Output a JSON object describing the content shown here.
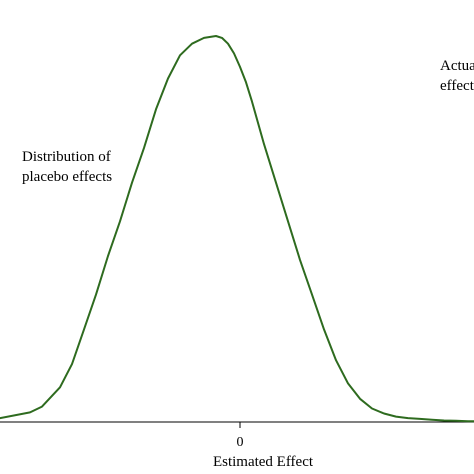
{
  "chart_data": {
    "type": "line",
    "title": "",
    "xlabel": "Estimated Effect",
    "ylabel": "",
    "xlim": [
      -2.0,
      1.95
    ],
    "ylim": [
      0,
      1.0
    ],
    "x_ticks": [
      0
    ],
    "x_tick_labels": [
      "0"
    ],
    "grid": false,
    "legend": "none",
    "line_color": "#2e6b1f",
    "annotations": [
      {
        "id": "placebo",
        "lines": [
          "Distribution of",
          "placebo effects"
        ]
      },
      {
        "id": "actual",
        "lines": [
          "Actual",
          "effect"
        ]
      }
    ],
    "series": [
      {
        "x": [
          -2.0,
          -1.75,
          -1.65,
          -1.5,
          -1.4,
          -1.3,
          -1.2,
          -1.1,
          -1.0,
          -0.9,
          -0.8,
          -0.7,
          -0.6,
          -0.5,
          -0.4,
          -0.3,
          -0.2,
          -0.15,
          -0.1,
          -0.05,
          0.0,
          0.05,
          0.1,
          0.2,
          0.3,
          0.4,
          0.5,
          0.6,
          0.7,
          0.8,
          0.9,
          1.0,
          1.1,
          1.2,
          1.3,
          1.4,
          1.5,
          1.6,
          1.7,
          1.8,
          1.9,
          1.95
        ],
        "y": [
          0.01,
          0.025,
          0.04,
          0.09,
          0.15,
          0.24,
          0.33,
          0.43,
          0.52,
          0.62,
          0.71,
          0.81,
          0.89,
          0.95,
          0.98,
          0.995,
          1.0,
          0.995,
          0.98,
          0.955,
          0.92,
          0.88,
          0.83,
          0.72,
          0.62,
          0.52,
          0.42,
          0.33,
          0.24,
          0.16,
          0.1,
          0.06,
          0.035,
          0.022,
          0.014,
          0.01,
          0.008,
          0.006,
          0.004,
          0.003,
          0.002,
          0.002
        ]
      }
    ]
  }
}
